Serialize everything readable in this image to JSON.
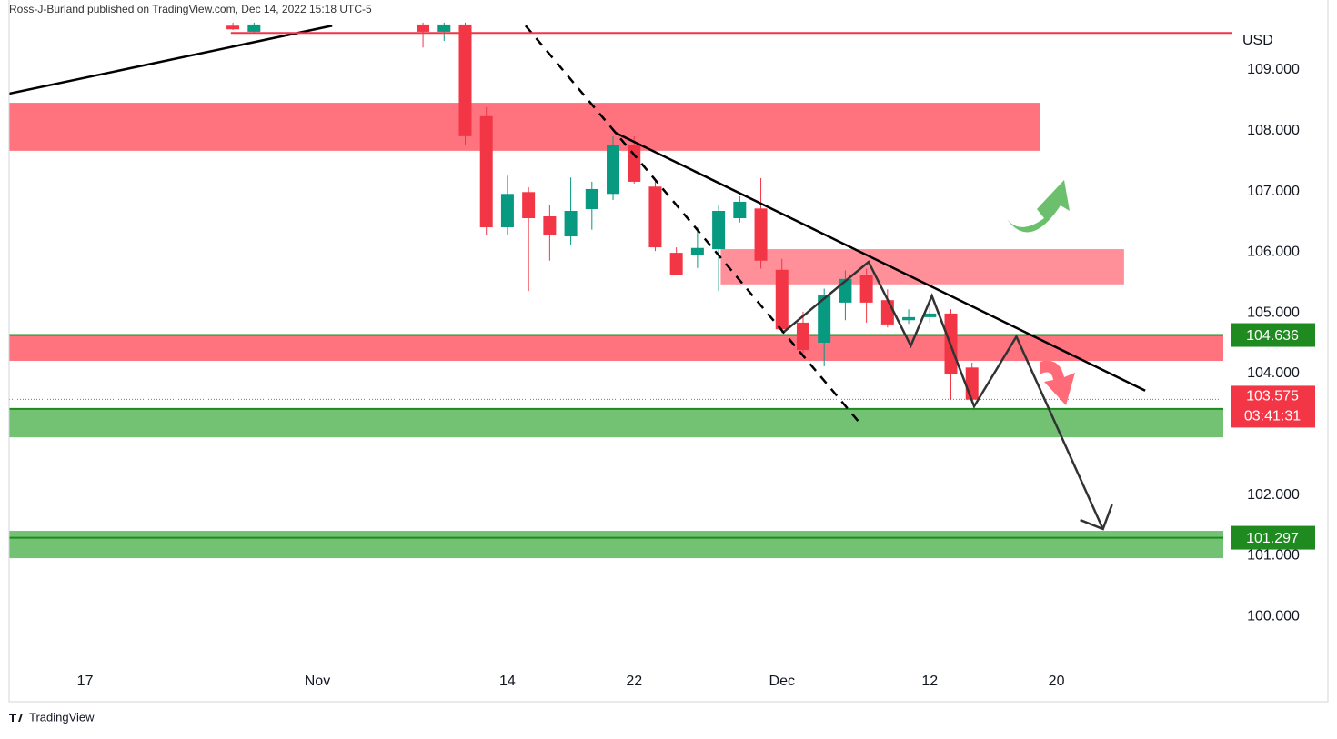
{
  "chart_data": {
    "type": "candlestick",
    "header": "Ross-J-Burland published on TradingView.com, Dec 14, 2022 15:18 UTC-5",
    "footer": "TradingView",
    "currency": "USD",
    "xlim": [
      -23.6,
      33.9
    ],
    "xticks": [
      {
        "value": -20,
        "label": "17"
      },
      {
        "value": -9,
        "label": "Nov"
      },
      {
        "value": 0,
        "label": "14"
      },
      {
        "value": 6,
        "label": "22"
      },
      {
        "value": 13,
        "label": "Dec"
      },
      {
        "value": 20,
        "label": "12"
      },
      {
        "value": 26,
        "label": "20"
      }
    ],
    "ylim": [
      99.15,
      110.153
    ],
    "yticks": [
      {
        "value": 109,
        "label": "109.000"
      },
      {
        "value": 108,
        "label": "108.000"
      },
      {
        "value": 107,
        "label": "107.000"
      },
      {
        "value": 106,
        "label": "106.000"
      },
      {
        "value": 105,
        "label": "105.000"
      },
      {
        "value": 104,
        "label": "104.000"
      },
      {
        "value": 102,
        "label": "102.000"
      },
      {
        "value": 101,
        "label": "101.000"
      },
      {
        "value": 100,
        "label": "100.000"
      }
    ],
    "up_color": "#089981",
    "down_color": "#f23645",
    "x": [
      -13,
      -12,
      -4,
      -3,
      -2,
      -1,
      0,
      1,
      2,
      3,
      4,
      5,
      6,
      7,
      8,
      9,
      10,
      11,
      12,
      13,
      14,
      15,
      16,
      17,
      18,
      19,
      20,
      21,
      22
    ],
    "open": [
      109.73,
      109.63,
      109.75,
      109.63,
      109.75,
      108.24,
      106.41,
      106.99,
      106.59,
      106.26,
      106.71,
      106.96,
      107.76,
      107.08,
      105.99,
      105.96,
      106.05,
      106.56,
      106.72,
      105.71,
      104.84,
      104.51,
      105.17,
      105.62,
      105.21,
      104.88,
      104.93,
      104.99,
      104.1
    ],
    "high": [
      109.78,
      109.78,
      109.78,
      109.78,
      109.78,
      108.39,
      107.26,
      107.07,
      106.77,
      107.23,
      107.16,
      107.91,
      107.91,
      107.2,
      106.08,
      106.41,
      106.77,
      106.92,
      107.22,
      105.89,
      105.02,
      105.4,
      105.7,
      105.73,
      105.39,
      105.06,
      105.14,
      105.06,
      104.18
    ],
    "low": [
      109.66,
      109.6,
      109.37,
      109.48,
      107.76,
      106.29,
      106.29,
      105.36,
      105.86,
      106.11,
      106.37,
      106.86,
      107.13,
      106.02,
      105.62,
      105.74,
      105.36,
      106.49,
      105.73,
      104.67,
      104.31,
      104.12,
      104.88,
      104.84,
      104.76,
      104.82,
      104.84,
      103.57,
      103.52
    ],
    "close": [
      109.67,
      109.75,
      109.63,
      109.75,
      107.91,
      106.41,
      106.96,
      106.56,
      106.29,
      106.68,
      107.04,
      107.77,
      107.16,
      106.08,
      105.63,
      106.07,
      106.68,
      106.83,
      105.86,
      104.73,
      104.39,
      105.29,
      105.56,
      105.17,
      104.81,
      104.93,
      104.99,
      104.0,
      103.57
    ],
    "zones": [
      {
        "top": 108.46,
        "bottom": 107.67,
        "x0": -23.6,
        "x1": 25.2,
        "color": "#ff6b78"
      },
      {
        "top": 106.05,
        "bottom": 105.47,
        "x0": 10.1,
        "x1": 29.2,
        "color": "#ff8a93"
      },
      {
        "top": 104.64,
        "bottom": 104.21,
        "x0": -23.6,
        "x1": 33.9,
        "color": "#ff6b78"
      },
      {
        "top": 103.42,
        "bottom": 102.95,
        "x0": -23.6,
        "x1": 33.9,
        "color": "#6cbf6c"
      },
      {
        "top": 101.41,
        "bottom": 100.96,
        "x0": -23.6,
        "x1": 33.9,
        "color": "#6cbf6c"
      }
    ],
    "price_lines": [
      {
        "value": 104.636,
        "color": "#1f8a1f"
      },
      {
        "value": 103.418,
        "color": "#1f8a1f"
      },
      {
        "value": 101.297,
        "color": "#1f8a1f"
      }
    ],
    "top_line": {
      "value": 109.61,
      "x0": -13.1,
      "color": "#f23645"
    },
    "current": {
      "value": 103.575,
      "countdown": "03:41:31",
      "color": "#f23645"
    },
    "trendlines": [
      {
        "points": [
          [
            -23.6,
            108.61
          ],
          [
            -8.3,
            109.73
          ]
        ],
        "dashed": false
      },
      {
        "points": [
          [
            5.1,
            107.97
          ],
          [
            30.2,
            103.72
          ]
        ],
        "dashed": false
      },
      {
        "points": [
          [
            0.86,
            109.73
          ],
          [
            16.7,
            103.18
          ]
        ],
        "dashed": true
      },
      {
        "points": [
          [
            13.1,
            104.69
          ],
          [
            17.1,
            105.84
          ],
          [
            19.1,
            104.46
          ],
          [
            20.1,
            105.28
          ],
          [
            22.1,
            103.46
          ],
          [
            24.1,
            104.61
          ],
          [
            28.2,
            101.44
          ]
        ],
        "dashed": false,
        "arrow": true
      }
    ]
  }
}
